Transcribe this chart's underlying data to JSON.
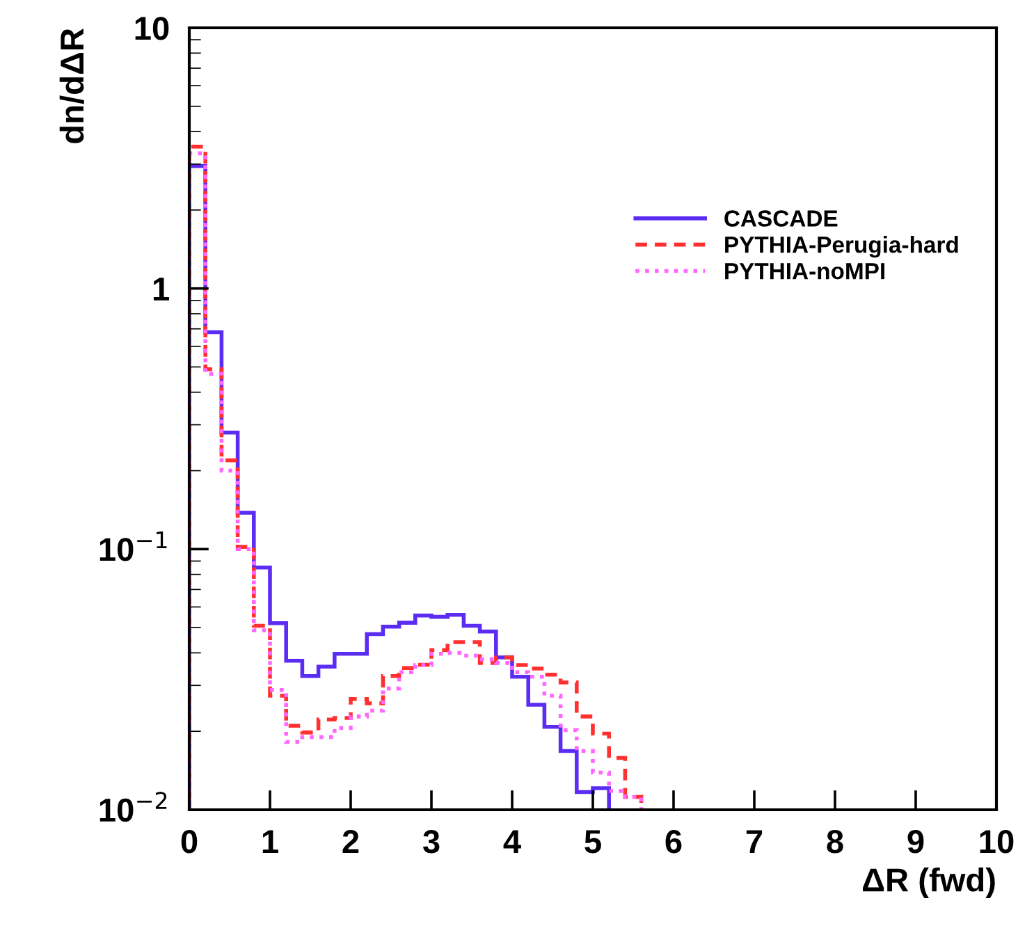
{
  "chart_data": {
    "type": "histogram",
    "xlabel": "ΔR (fwd)",
    "ylabel": "dn/dΔR",
    "log": "y",
    "legend": "right",
    "grid": false,
    "bins": [
      0,
      0.2,
      0.4,
      0.6,
      0.8,
      1.0,
      1.2,
      1.4,
      1.6,
      1.8,
      2.0,
      2.2,
      2.4,
      2.6,
      2.8,
      3.0,
      3.2,
      3.4,
      3.6,
      3.8,
      4.0,
      4.2,
      4.4,
      4.6,
      4.8,
      5.0,
      5.2,
      5.4,
      5.6
    ],
    "series": [
      {
        "name": "CASCADE",
        "color": "#5b2cf2",
        "line_style": "solid",
        "bins": [
          0,
          0.2,
          0.4,
          0.6,
          0.8,
          1.0,
          1.2,
          1.4,
          1.6,
          1.8,
          2.0,
          2.2,
          2.4,
          2.6,
          2.8,
          3.0,
          3.2,
          3.4,
          3.6,
          3.8,
          4.0,
          4.2,
          4.4,
          4.6,
          4.8,
          5.0,
          5.2
        ],
        "values": [
          2.95,
          0.68,
          0.28,
          0.138,
          0.085,
          0.052,
          0.0373,
          0.0326,
          0.0354,
          0.0397,
          0.0397,
          0.0472,
          0.0504,
          0.0522,
          0.0556,
          0.055,
          0.056,
          0.0508,
          0.0483,
          0.0384,
          0.0324,
          0.0253,
          0.0208,
          0.0168,
          0.0117,
          0.0121
        ]
      },
      {
        "name": "PYTHIA-Perugia-hard",
        "color": "#ff3030",
        "line_style": "dashed",
        "values": [
          3.5,
          0.49,
          0.219,
          0.102,
          0.0508,
          0.0274,
          0.021,
          0.0198,
          0.0222,
          0.0225,
          0.0266,
          0.0256,
          0.0326,
          0.035,
          0.036,
          0.041,
          0.044,
          0.044,
          0.0366,
          0.0384,
          0.0359,
          0.0348,
          0.033,
          0.0308,
          0.0228,
          0.0196,
          0.0158,
          0.0112
        ]
      },
      {
        "name": "PYTHIA-noMPI",
        "color": "#ff66ff",
        "line_style": "dotted",
        "values": [
          3.3,
          0.47,
          0.2,
          0.1,
          0.0488,
          0.0288,
          0.0182,
          0.019,
          0.019,
          0.0206,
          0.0228,
          0.024,
          0.0292,
          0.0337,
          0.0359,
          0.0397,
          0.04,
          0.039,
          0.0378,
          0.0366,
          0.0337,
          0.0324,
          0.0274,
          0.0202,
          0.0168,
          0.0139,
          0.0118,
          0.0112
        ]
      }
    ],
    "xlim": [
      0,
      10
    ],
    "xticks": [
      0,
      1,
      2,
      3,
      4,
      5,
      6,
      7,
      8,
      9,
      10
    ],
    "ylim": [
      0.01,
      10
    ],
    "yticks": [
      {
        "value": 0.01,
        "label": "10$^{−2}$"
      },
      {
        "value": 0.1,
        "label": "10$^{−1}$"
      },
      1,
      10
    ]
  }
}
